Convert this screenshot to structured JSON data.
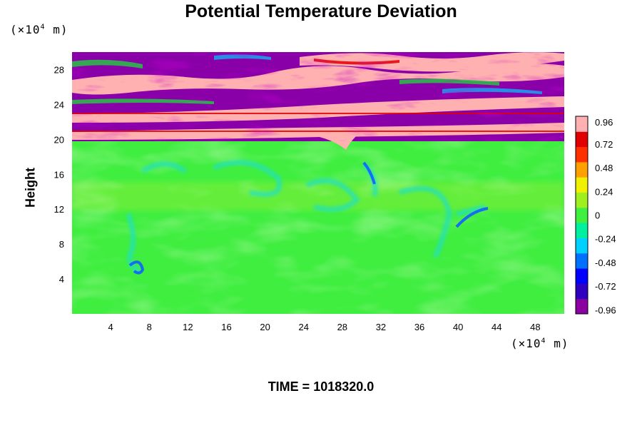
{
  "chart_data": {
    "type": "heatmap",
    "title": "Potential Temperature Deviation",
    "ylabel": "Height",
    "xlabel": "",
    "unit_prefix": "(×10",
    "unit_exp": "4",
    "unit_suffix": " m)",
    "x_ticks": [
      "4",
      "8",
      "12",
      "16",
      "20",
      "24",
      "28",
      "32",
      "36",
      "40",
      "44",
      "48"
    ],
    "x_tick_values": [
      4,
      8,
      12,
      16,
      20,
      24,
      28,
      32,
      36,
      40,
      44,
      48
    ],
    "y_ticks": [
      "4",
      "8",
      "12",
      "16",
      "20",
      "24",
      "28"
    ],
    "y_tick_values": [
      4,
      8,
      12,
      16,
      20,
      24,
      28
    ],
    "xlim": [
      0,
      51
    ],
    "ylim": [
      0,
      30
    ],
    "colorbar": {
      "ticks": [
        "0.96",
        "0.72",
        "0.48",
        "0.24",
        "0",
        "-0.24",
        "-0.48",
        "-0.72",
        "-0.96"
      ],
      "values": [
        0.96,
        0.72,
        0.48,
        0.24,
        0,
        -0.24,
        -0.48,
        -0.72,
        -0.96
      ],
      "range": [
        -1.0,
        1.0
      ],
      "colors": [
        "#8b00a0",
        "#3000c0",
        "#0000ff",
        "#0070ff",
        "#00d0ff",
        "#00f0a0",
        "#40f040",
        "#a0f020",
        "#f0f000",
        "#ffa000",
        "#ff3000",
        "#e00000",
        "#ffb0b0"
      ]
    },
    "field_description_levels": {
      "lower_layer_mean": 0.0,
      "stratosphere_min": -0.96,
      "stratosphere_max": 0.96,
      "boundary_height": 20
    }
  },
  "footer": {
    "time_label": "TIME = 1018320.0"
  }
}
